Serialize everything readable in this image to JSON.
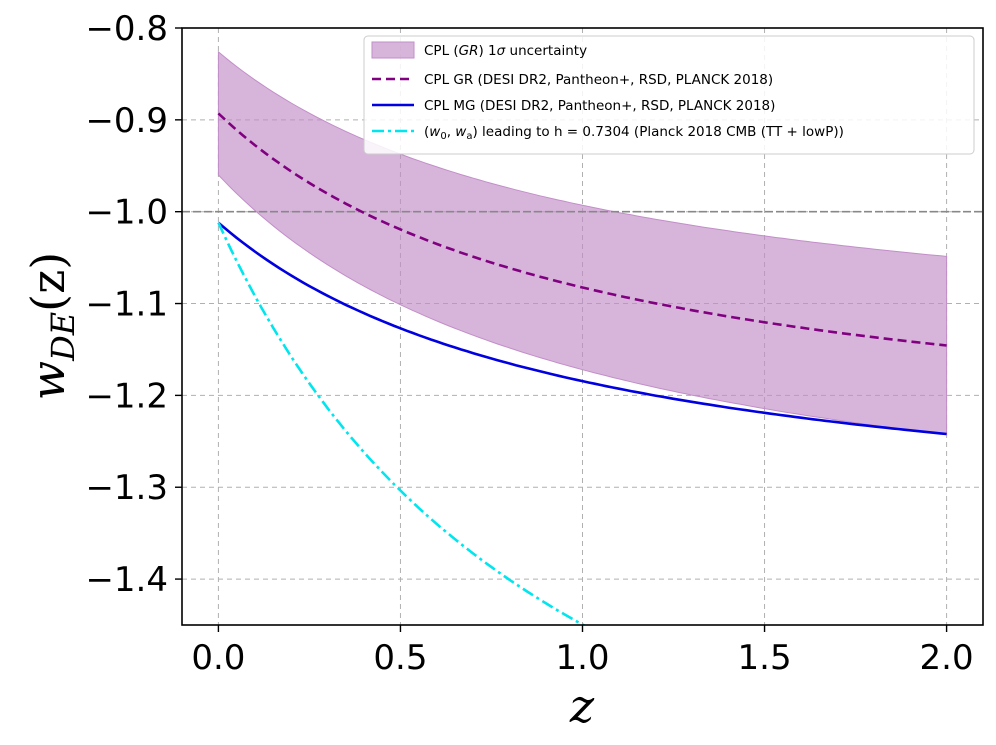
{
  "chart_data": {
    "type": "line",
    "title": "",
    "xlabel": "z",
    "ylabel": {
      "base": "w",
      "sub": "DE",
      "suffix": "(z)"
    },
    "xlim": [
      -0.1,
      2.1
    ],
    "ylim": [
      -1.45,
      -0.8
    ],
    "xticks": [
      0.0,
      0.5,
      1.0,
      1.5,
      2.0
    ],
    "xtick_labels": [
      "0.0",
      "0.5",
      "1.0",
      "1.5",
      "2.0"
    ],
    "yticks": [
      -0.8,
      -0.9,
      -1.0,
      -1.1,
      -1.2,
      -1.3,
      -1.4
    ],
    "ytick_labels": [
      "−0.8",
      "−0.9",
      "−1.0",
      "−1.1",
      "−1.2",
      "−1.3",
      "−1.4"
    ],
    "grid": true,
    "reference_line": {
      "y": -1.0,
      "color": "#888888"
    },
    "legend_position": "top-right",
    "band": {
      "name": "CPL (GR) 1σ uncertainty",
      "legend_parts": [
        "CPL (",
        "GR",
        ") 1",
        "σ",
        " uncertainty"
      ],
      "color": "#c28ec8",
      "w0_upper": -0.826,
      "wa_upper": -0.334,
      "w0_lower": -0.96,
      "wa_lower": -0.424
    },
    "series": [
      {
        "name": "CPL GR (DESI DR2, Pantheon+, RSD, PLANCK 2018)",
        "legend_parts": [
          "CPL GR (DESI DR2, Pantheon+, RSD, PLANCK 2018)"
        ],
        "color": "#800080",
        "style": "dashed",
        "w0": -0.893,
        "wa": -0.379
      },
      {
        "name": "CPL MG (DESI DR2, Pantheon+, RSD, PLANCK 2018)",
        "legend_parts": [
          "CPL MG (DESI DR2, Pantheon+, RSD, PLANCK 2018)"
        ],
        "color": "#0000e0",
        "style": "solid",
        "w0": -1.012,
        "wa": -0.345
      },
      {
        "name": "(w0, wa) leading to h = 0.7304 (Planck 2018 CMB (TT + lowP))",
        "legend_parts": [
          "(",
          "w",
          "0",
          ", ",
          "w",
          "a",
          ") leading to h = 0.7304 (Planck 2018 CMB (TT + lowP))"
        ],
        "color": "#00e5ee",
        "style": "dashdot",
        "w0": -1.012,
        "wa": -0.875
      }
    ]
  }
}
